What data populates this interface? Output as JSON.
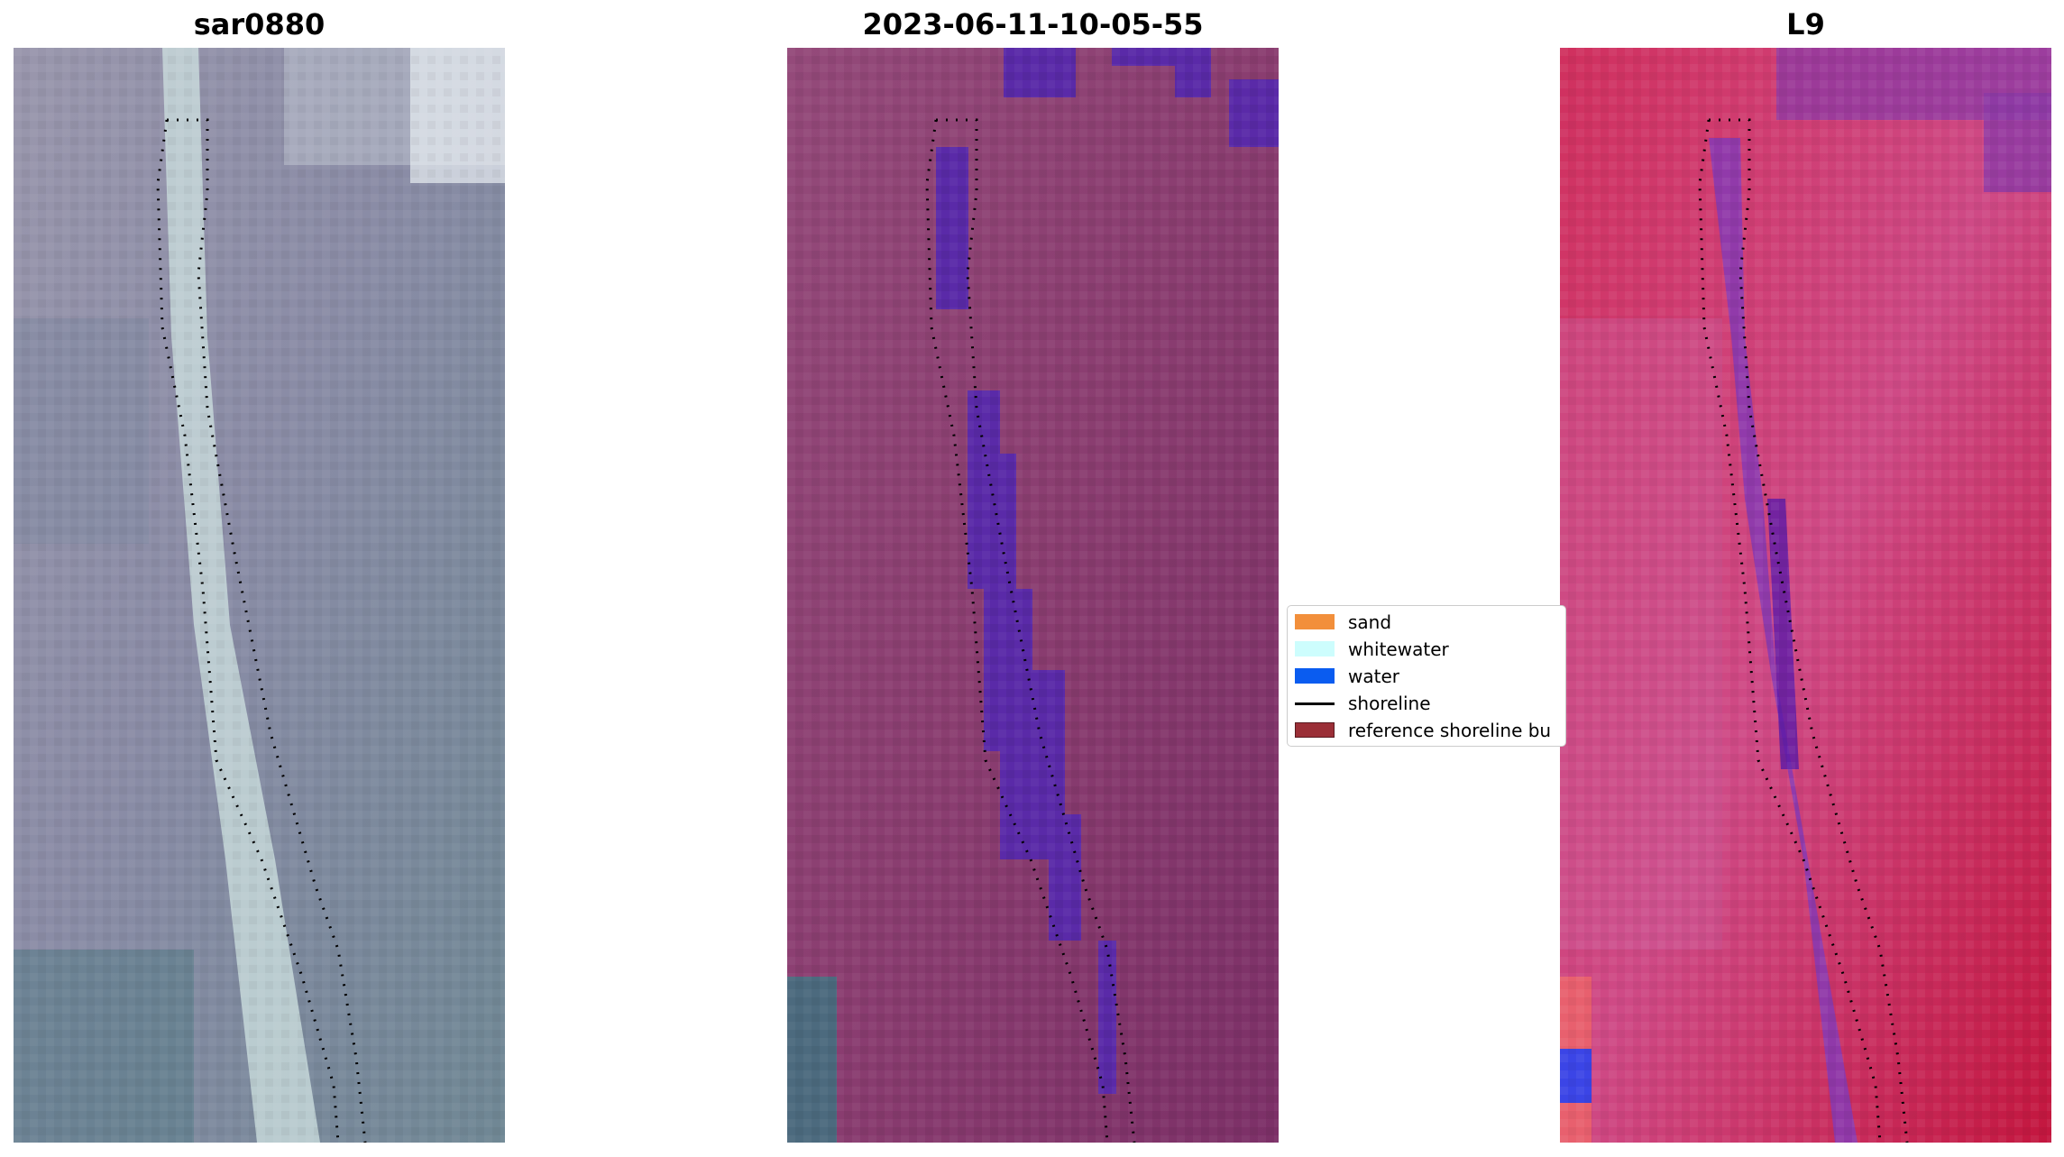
{
  "panels": [
    {
      "title": "sar0880",
      "kind": "rgb"
    },
    {
      "title": "2023-06-11-10-05-55",
      "kind": "classified"
    },
    {
      "title": "L9",
      "kind": "falsecolor"
    }
  ],
  "legend": {
    "items": [
      {
        "label": "sand",
        "color": "#f28f3b",
        "type": "patch"
      },
      {
        "label": "whitewater",
        "color": "#cdfdfd",
        "type": "patch"
      },
      {
        "label": "water",
        "color": "#0a5cf0",
        "type": "patch"
      },
      {
        "label": "shoreline",
        "color": "#000000",
        "type": "line"
      },
      {
        "label": "reference shoreline bu",
        "color": "#9b2f37",
        "type": "patch"
      }
    ]
  },
  "colors": {
    "rgb_background": "#8e8fa6",
    "rgb_channel": "#c9dcdc",
    "classified_background": "#8e3c72",
    "classified_water": "#5a2aa8",
    "falsecolor_background": "#d2336b",
    "falsecolor_channel": "#8a3ab0",
    "shoreline": "#000000"
  }
}
